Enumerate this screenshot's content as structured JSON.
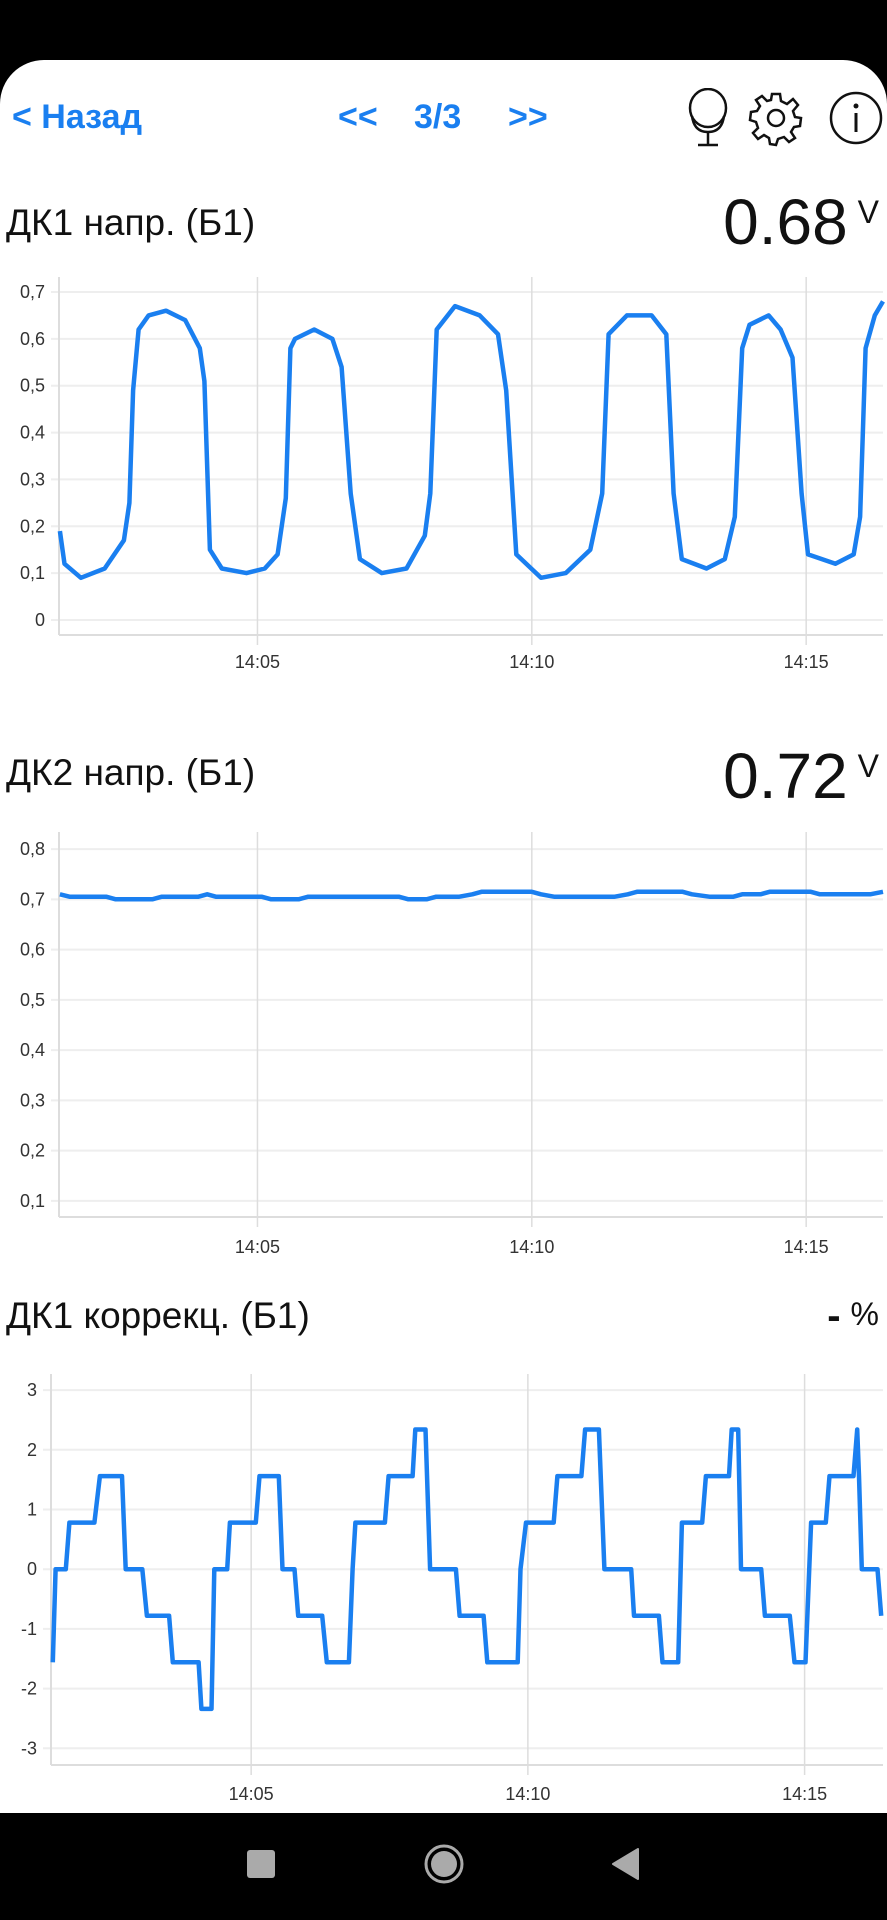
{
  "header": {
    "back_label": "< Назад",
    "prev_label": "<<",
    "page_indicator": "3/3",
    "next_label": ">>",
    "icons": [
      "microphone-icon",
      "gear-icon",
      "info-icon"
    ]
  },
  "accent_color": "#1a7ff0",
  "panels": [
    {
      "title": "ДК1 напр. (Б1)",
      "value": "0.68",
      "unit": "V"
    },
    {
      "title": "ДК2 напр. (Б1)",
      "value": "0.72",
      "unit": "V"
    },
    {
      "title": "ДК1 коррекц. (Б1)",
      "value": "-",
      "unit": "%"
    }
  ],
  "chart_data": [
    {
      "type": "line",
      "xlim": [
        "14:01:23",
        "14:16:24"
      ],
      "ylim": [
        -0.032,
        0.732
      ],
      "grid": true,
      "x_ticks": [
        "14:05",
        "14:10",
        "14:15"
      ],
      "y_ticks": [
        0,
        0.1,
        0.2,
        0.3,
        0.4,
        0.5,
        0.6,
        0.7
      ],
      "y_tick_labels": [
        "0",
        "0,1",
        "0,2",
        "0,3",
        "0,4",
        "0,5",
        "0,6",
        "0,7"
      ],
      "points": [
        [
          "14:01:24",
          0.19
        ],
        [
          "14:01:29",
          0.12
        ],
        [
          "14:01:47",
          0.09
        ],
        [
          "14:02:13",
          0.11
        ],
        [
          "14:02:34",
          0.17
        ],
        [
          "14:02:40",
          0.25
        ],
        [
          "14:02:44",
          0.49
        ],
        [
          "14:02:50",
          0.62
        ],
        [
          "14:03:01",
          0.65
        ],
        [
          "14:03:20",
          0.66
        ],
        [
          "14:03:41",
          0.64
        ],
        [
          "14:03:57",
          0.58
        ],
        [
          "14:04:02",
          0.51
        ],
        [
          "14:04:08",
          0.15
        ],
        [
          "14:04:21",
          0.11
        ],
        [
          "14:04:48",
          0.1
        ],
        [
          "14:05:08",
          0.11
        ],
        [
          "14:05:22",
          0.14
        ],
        [
          "14:05:31",
          0.26
        ],
        [
          "14:05:36",
          0.58
        ],
        [
          "14:05:41",
          0.6
        ],
        [
          "14:06:02",
          0.62
        ],
        [
          "14:06:22",
          0.6
        ],
        [
          "14:06:32",
          0.54
        ],
        [
          "14:06:42",
          0.27
        ],
        [
          "14:06:52",
          0.13
        ],
        [
          "14:07:16",
          0.1
        ],
        [
          "14:07:43",
          0.11
        ],
        [
          "14:08:03",
          0.18
        ],
        [
          "14:08:09",
          0.27
        ],
        [
          "14:08:16",
          0.62
        ],
        [
          "14:08:36",
          0.67
        ],
        [
          "14:09:03",
          0.65
        ],
        [
          "14:09:23",
          0.61
        ],
        [
          "14:09:32",
          0.49
        ],
        [
          "14:09:43",
          0.14
        ],
        [
          "14:10:10",
          0.09
        ],
        [
          "14:10:37",
          0.1
        ],
        [
          "14:11:04",
          0.15
        ],
        [
          "14:11:17",
          0.27
        ],
        [
          "14:11:24",
          0.61
        ],
        [
          "14:11:44",
          0.65
        ],
        [
          "14:12:11",
          0.65
        ],
        [
          "14:12:27",
          0.61
        ],
        [
          "14:12:35",
          0.27
        ],
        [
          "14:12:44",
          0.13
        ],
        [
          "14:13:11",
          0.11
        ],
        [
          "14:13:31",
          0.13
        ],
        [
          "14:13:42",
          0.22
        ],
        [
          "14:13:50",
          0.58
        ],
        [
          "14:13:58",
          0.63
        ],
        [
          "14:14:19",
          0.65
        ],
        [
          "14:14:32",
          0.62
        ],
        [
          "14:14:45",
          0.56
        ],
        [
          "14:14:55",
          0.27
        ],
        [
          "14:15:02",
          0.14
        ],
        [
          "14:15:32",
          0.12
        ],
        [
          "14:15:52",
          0.14
        ],
        [
          "14:15:59",
          0.22
        ],
        [
          "14:16:05",
          0.58
        ],
        [
          "14:16:15",
          0.65
        ],
        [
          "14:16:24",
          0.68
        ]
      ]
    },
    {
      "type": "line",
      "xlim": [
        "14:01:23",
        "14:16:24"
      ],
      "ylim": [
        0.068,
        0.834
      ],
      "grid": true,
      "x_ticks": [
        "14:05",
        "14:10",
        "14:15"
      ],
      "y_ticks": [
        0.1,
        0.2,
        0.3,
        0.4,
        0.5,
        0.6,
        0.7,
        0.8
      ],
      "y_tick_labels": [
        "0,1",
        "0,2",
        "0,3",
        "0,4",
        "0,5",
        "0,6",
        "0,7",
        "0,8"
      ],
      "points": [
        [
          "14:01:24",
          0.71
        ],
        [
          "14:01:35",
          0.705
        ],
        [
          "14:02:15",
          0.705
        ],
        [
          "14:02:25",
          0.7
        ],
        [
          "14:03:05",
          0.7
        ],
        [
          "14:03:15",
          0.705
        ],
        [
          "14:03:55",
          0.705
        ],
        [
          "14:04:05",
          0.71
        ],
        [
          "14:04:15",
          0.705
        ],
        [
          "14:05:05",
          0.705
        ],
        [
          "14:05:15",
          0.7
        ],
        [
          "14:05:45",
          0.7
        ],
        [
          "14:05:55",
          0.705
        ],
        [
          "14:07:35",
          0.705
        ],
        [
          "14:07:45",
          0.7
        ],
        [
          "14:08:05",
          0.7
        ],
        [
          "14:08:15",
          0.705
        ],
        [
          "14:08:40",
          0.705
        ],
        [
          "14:08:55",
          0.71
        ],
        [
          "14:09:05",
          0.715
        ],
        [
          "14:10:00",
          0.715
        ],
        [
          "14:10:10",
          0.71
        ],
        [
          "14:10:25",
          0.705
        ],
        [
          "14:11:30",
          0.705
        ],
        [
          "14:11:45",
          0.71
        ],
        [
          "14:11:55",
          0.715
        ],
        [
          "14:12:45",
          0.715
        ],
        [
          "14:12:55",
          0.71
        ],
        [
          "14:13:15",
          0.705
        ],
        [
          "14:13:40",
          0.705
        ],
        [
          "14:13:50",
          0.71
        ],
        [
          "14:14:10",
          0.71
        ],
        [
          "14:14:20",
          0.715
        ],
        [
          "14:15:05",
          0.715
        ],
        [
          "14:15:15",
          0.71
        ],
        [
          "14:16:10",
          0.71
        ],
        [
          "14:16:24",
          0.715
        ]
      ]
    },
    {
      "type": "line",
      "xlim": [
        "14:01:23",
        "14:16:25"
      ],
      "ylim": [
        -3.28,
        3.27
      ],
      "grid": true,
      "x_ticks": [
        "14:05",
        "14:10",
        "14:15"
      ],
      "y_ticks": [
        -3,
        -2,
        -1,
        0,
        1,
        2,
        3
      ],
      "y_tick_labels": [
        "-3",
        "-2",
        "-1",
        "0",
        "1",
        "2",
        "3"
      ],
      "points": [
        [
          "14:01:25",
          -1.56
        ],
        [
          "14:01:28",
          0
        ],
        [
          "14:01:39",
          0
        ],
        [
          "14:01:43",
          0.78
        ],
        [
          "14:02:10",
          0.78
        ],
        [
          "14:02:16",
          1.56
        ],
        [
          "14:02:40",
          1.56
        ],
        [
          "14:02:44",
          0
        ],
        [
          "14:03:02",
          0
        ],
        [
          "14:03:07",
          -0.78
        ],
        [
          "14:03:31",
          -0.78
        ],
        [
          "14:03:35",
          -1.56
        ],
        [
          "14:04:03",
          -1.56
        ],
        [
          "14:04:06",
          -2.34
        ],
        [
          "14:04:17",
          -2.34
        ],
        [
          "14:04:20",
          0
        ],
        [
          "14:04:34",
          0
        ],
        [
          "14:04:37",
          0.78
        ],
        [
          "14:05:05",
          0.78
        ],
        [
          "14:05:09",
          1.56
        ],
        [
          "14:05:30",
          1.56
        ],
        [
          "14:05:34",
          0
        ],
        [
          "14:05:47",
          0
        ],
        [
          "14:05:51",
          -0.78
        ],
        [
          "14:06:17",
          -0.78
        ],
        [
          "14:06:22",
          -1.56
        ],
        [
          "14:06:46",
          -1.56
        ],
        [
          "14:06:50",
          0
        ],
        [
          "14:06:53",
          0.78
        ],
        [
          "14:07:25",
          0.78
        ],
        [
          "14:07:29",
          1.56
        ],
        [
          "14:07:55",
          1.56
        ],
        [
          "14:07:58",
          2.34
        ],
        [
          "14:08:09",
          2.34
        ],
        [
          "14:08:14",
          0
        ],
        [
          "14:08:42",
          0
        ],
        [
          "14:08:46",
          -0.78
        ],
        [
          "14:09:12",
          -0.78
        ],
        [
          "14:09:16",
          -1.56
        ],
        [
          "14:09:49",
          -1.56
        ],
        [
          "14:09:52",
          0
        ],
        [
          "14:09:58",
          0.78
        ],
        [
          "14:10:28",
          0.78
        ],
        [
          "14:10:32",
          1.56
        ],
        [
          "14:10:58",
          1.56
        ],
        [
          "14:11:02",
          2.34
        ],
        [
          "14:11:17",
          2.34
        ],
        [
          "14:11:23",
          0
        ],
        [
          "14:11:52",
          0
        ],
        [
          "14:11:55",
          -0.78
        ],
        [
          "14:12:22",
          -0.78
        ],
        [
          "14:12:26",
          -1.56
        ],
        [
          "14:12:43",
          -1.56
        ],
        [
          "14:12:47",
          0.78
        ],
        [
          "14:13:09",
          0.78
        ],
        [
          "14:13:13",
          1.56
        ],
        [
          "14:13:38",
          1.56
        ],
        [
          "14:13:41",
          2.34
        ],
        [
          "14:13:48",
          2.34
        ],
        [
          "14:13:51",
          0
        ],
        [
          "14:14:13",
          0
        ],
        [
          "14:14:17",
          -0.78
        ],
        [
          "14:14:44",
          -0.78
        ],
        [
          "14:14:49",
          -1.56
        ],
        [
          "14:15:01",
          -1.56
        ],
        [
          "14:15:07",
          0.78
        ],
        [
          "14:15:23",
          0.78
        ],
        [
          "14:15:27",
          1.56
        ],
        [
          "14:15:53",
          1.56
        ],
        [
          "14:15:57",
          2.34
        ],
        [
          "14:15:59",
          1.56
        ],
        [
          "14:16:02",
          0
        ],
        [
          "14:16:19",
          0
        ],
        [
          "14:16:23",
          -0.78
        ]
      ]
    }
  ],
  "nav": {
    "icons": [
      "recents-square-icon",
      "home-circle-icon",
      "back-triangle-icon"
    ]
  }
}
